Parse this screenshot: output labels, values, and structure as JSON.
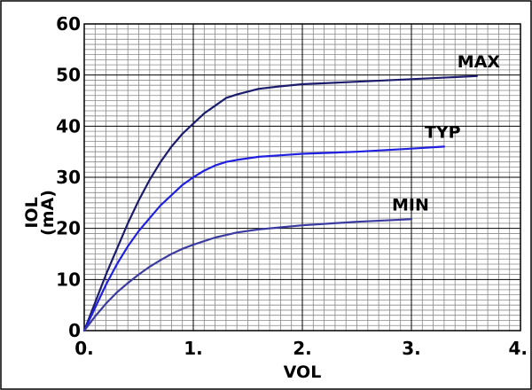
{
  "chart_data": {
    "type": "line",
    "title": "",
    "xlabel": "VOL",
    "ylabel": "IOL",
    "ylabel_unit_partial": "(mA)",
    "xlim": [
      0,
      4
    ],
    "ylim": [
      0,
      60
    ],
    "x_ticks": [
      "0.",
      "1.",
      "2.",
      "3.",
      "4."
    ],
    "y_ticks": [
      "0",
      "10",
      "20",
      "30",
      "40",
      "50",
      "60"
    ],
    "grid": true,
    "series": [
      {
        "name": "MAX",
        "color": "#1c1c6e",
        "x": [
          0,
          0.1,
          0.2,
          0.3,
          0.4,
          0.5,
          0.6,
          0.7,
          0.8,
          0.9,
          1.0,
          1.1,
          1.2,
          1.3,
          1.4,
          1.6,
          1.8,
          2.0,
          2.5,
          3.0,
          3.6
        ],
        "y": [
          0,
          5.5,
          11,
          16,
          21,
          25.5,
          29.5,
          33,
          36,
          38.5,
          40.5,
          42.5,
          44,
          45.5,
          46.2,
          47.3,
          47.8,
          48.2,
          48.7,
          49.2,
          49.8
        ]
      },
      {
        "name": "TYP",
        "color": "#2020e0",
        "x": [
          0,
          0.1,
          0.2,
          0.3,
          0.4,
          0.5,
          0.6,
          0.7,
          0.8,
          0.9,
          1.0,
          1.1,
          1.2,
          1.3,
          1.4,
          1.6,
          1.8,
          2.0,
          2.5,
          3.0,
          3.3
        ],
        "y": [
          0,
          4.5,
          9,
          13,
          16.5,
          19.5,
          22,
          24.5,
          26.5,
          28.5,
          30,
          31.3,
          32.3,
          33,
          33.4,
          34,
          34.3,
          34.6,
          35,
          35.6,
          36
        ]
      },
      {
        "name": "MIN",
        "color": "#3a3aa0",
        "x": [
          0,
          0.1,
          0.2,
          0.3,
          0.4,
          0.5,
          0.6,
          0.7,
          0.8,
          0.9,
          1.0,
          1.2,
          1.4,
          1.6,
          1.8,
          2.0,
          2.5,
          3.0
        ],
        "y": [
          0,
          2.8,
          5.3,
          7.5,
          9.3,
          11,
          12.5,
          13.8,
          15,
          16,
          16.8,
          18.2,
          19.2,
          19.8,
          20.2,
          20.6,
          21.3,
          21.8
        ]
      }
    ]
  }
}
